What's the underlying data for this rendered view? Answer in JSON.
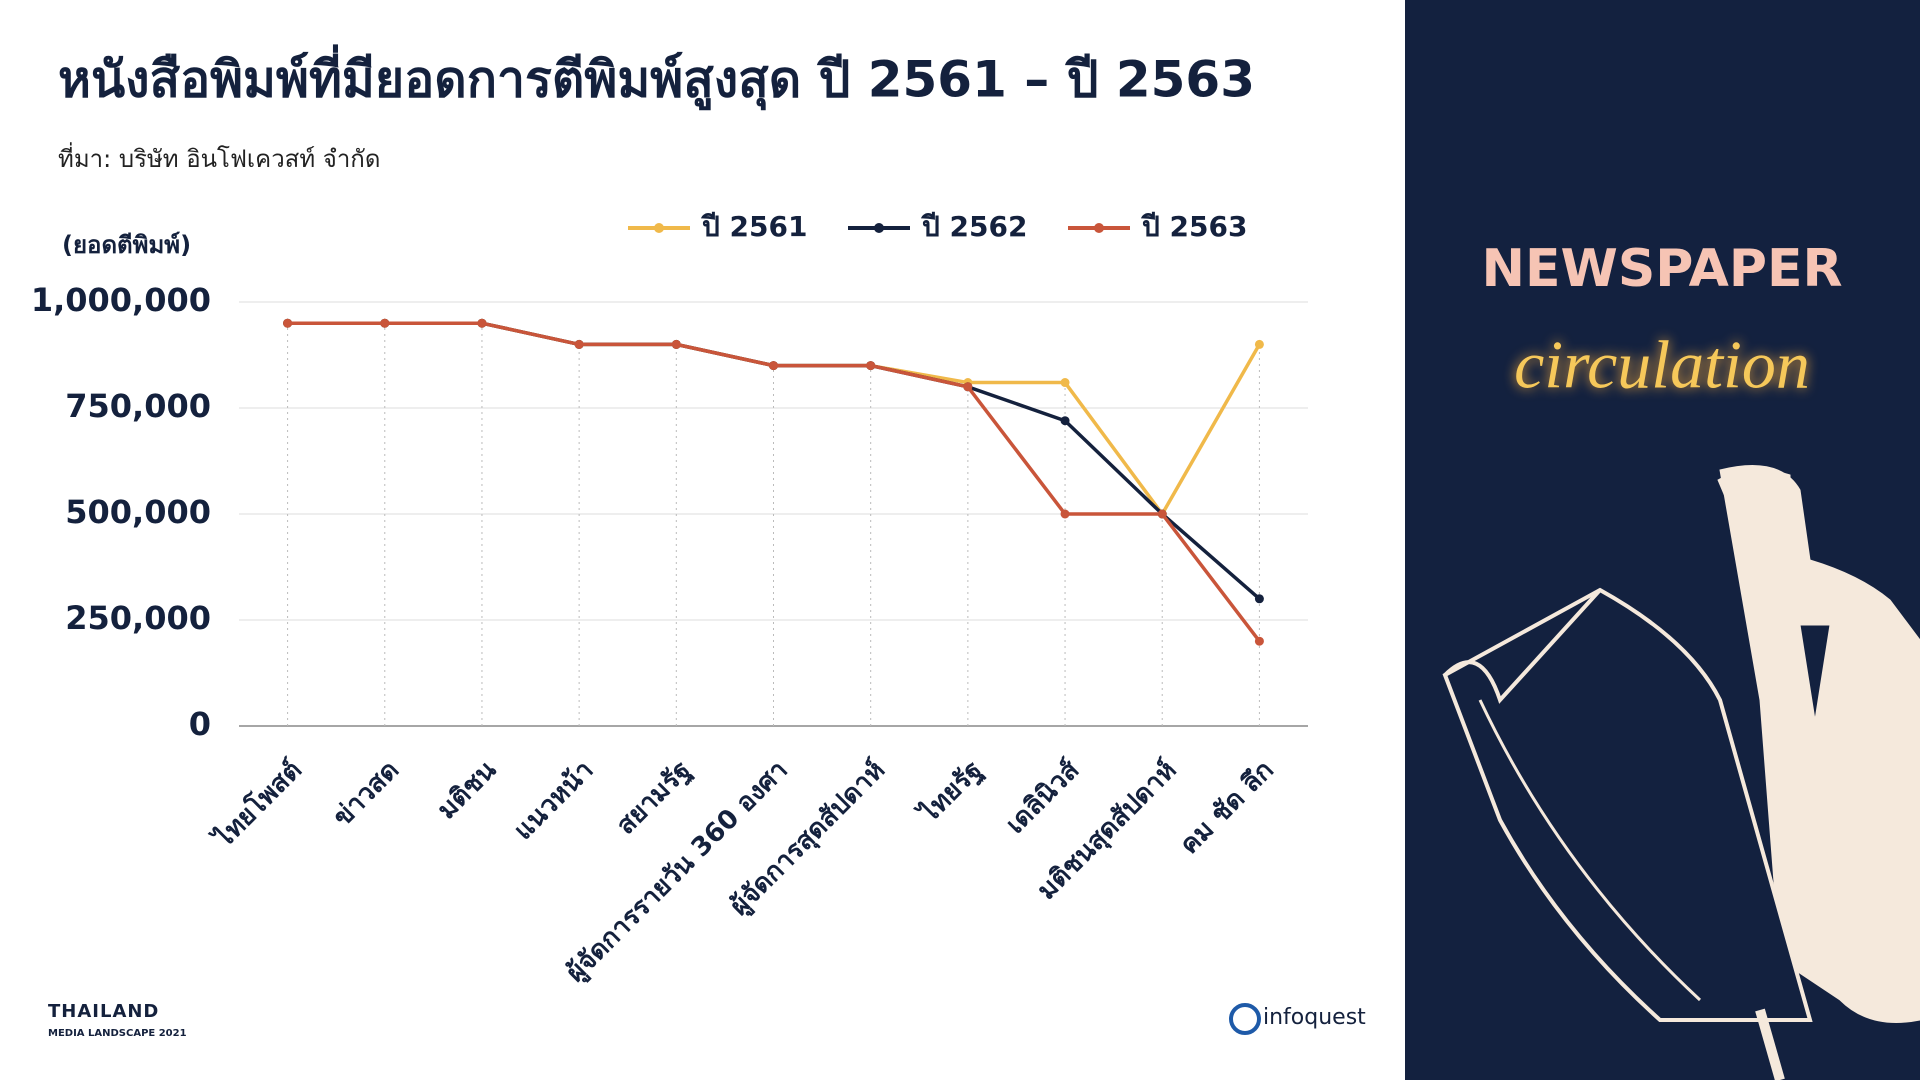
{
  "chart_data": {
    "type": "line",
    "title": "หนังสือพิมพ์ที่มียอดการตีพิมพ์สูงสุด ปี 2561 – ปี 2563",
    "subtitle": "ที่มา: บริษัท อินโฟเควสท์ จำกัด",
    "y_label": "(ยอดตีพิมพ์)",
    "categories": [
      "ไทยโพสต์",
      "ข่าวสด",
      "มติชน",
      "แนวหน้า",
      "สยามรัฐ",
      "ผู้จัดการรายวัน 360 องศา",
      "ผู้จัดการสุดสัปดาห์",
      "ไทยรัฐ",
      "เดลินิวส์",
      "มติชนสุดสัปดาห์",
      "คม ชัด ลึก"
    ],
    "series": [
      {
        "name": "ปี 2561",
        "color": "#f0b94a",
        "values": [
          950000,
          950000,
          950000,
          900000,
          900000,
          850000,
          850000,
          810000,
          810000,
          500000,
          900000
        ]
      },
      {
        "name": "ปี 2562",
        "color": "#14213d",
        "values": [
          950000,
          950000,
          950000,
          900000,
          900000,
          850000,
          850000,
          800000,
          720000,
          500000,
          300000
        ]
      },
      {
        "name": "ปี 2563",
        "color": "#c9553a",
        "values": [
          950000,
          950000,
          950000,
          900000,
          900000,
          850000,
          850000,
          800000,
          500000,
          500000,
          200000
        ]
      }
    ],
    "ylim": [
      0,
      1000000
    ],
    "yticks": [
      0,
      {
        "value": 250000,
        "label": "250,000"
      },
      {
        "value": 500000,
        "label": "500,000"
      },
      {
        "value": 750000,
        "label": "750,000"
      },
      {
        "value": 1000000,
        "label": "1,000,000"
      }
    ],
    "grid": true,
    "legend": "top-right"
  },
  "panel": {
    "heading": "NEWSPAPER",
    "script": "circulation"
  },
  "footer": {
    "brand": "THAILAND",
    "edition": "MEDIA LANDSCAPE 2021",
    "logo": "infoquest"
  }
}
